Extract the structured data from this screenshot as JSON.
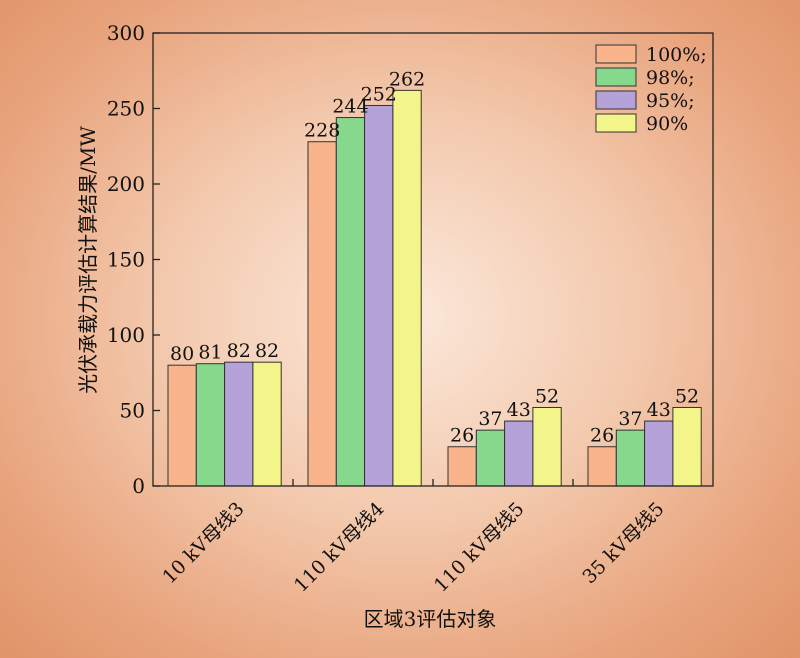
{
  "chart_data": {
    "type": "bar",
    "categories": [
      "10 kV母线3",
      "110 kV母线4",
      "110 kV母线5",
      "35 kV母线5"
    ],
    "series": [
      {
        "name": "100%;",
        "values": [
          80,
          228,
          26,
          26
        ]
      },
      {
        "name": "98%;",
        "values": [
          81,
          244,
          37,
          37
        ]
      },
      {
        "name": "95%;",
        "values": [
          82,
          252,
          43,
          43
        ]
      },
      {
        "name": "90%",
        "values": [
          82,
          262,
          52,
          52
        ]
      }
    ],
    "colors": [
      "#f9b48c",
      "#86d98c",
      "#b4a2d8",
      "#f3f58a"
    ],
    "xlabel": "区域3评估对象",
    "ylabel": "光伏承载力评估计算结果/MW",
    "ylim": [
      0,
      300
    ],
    "yticks": [
      0,
      50,
      100,
      150,
      200,
      250,
      300
    ],
    "legend_position": "top-right",
    "grid": false
  }
}
